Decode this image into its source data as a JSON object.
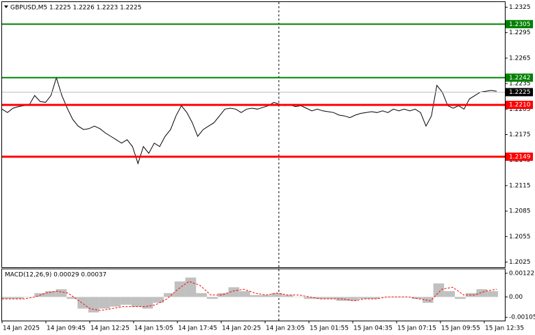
{
  "chart_data": [
    {
      "type": "line",
      "title": "GBPUSD,M5  1.2225 1.2226 1.2223 1.2225",
      "series": [
        {
          "color": "#000000",
          "values": [
            1.2205,
            1.2201,
            1.2206,
            1.2208,
            1.2209,
            1.221,
            1.2221,
            1.2214,
            1.2213,
            1.2221,
            1.2242,
            1.2221,
            1.2206,
            1.2193,
            1.2185,
            1.2181,
            1.2182,
            1.2185,
            1.2182,
            1.2177,
            1.2173,
            1.2169,
            1.2165,
            1.2169,
            1.2161,
            1.2141,
            1.2161,
            1.2153,
            1.2165,
            1.2161,
            1.2173,
            1.2181,
            1.2197,
            1.2209,
            1.2201,
            1.2189,
            1.2173,
            1.2181,
            1.2185,
            1.2189,
            1.2197,
            1.2205,
            1.2206,
            1.2205,
            1.2201,
            1.2205,
            1.2206,
            1.2205,
            1.2207,
            1.2209,
            1.2213,
            1.2211,
            1.2209,
            1.221,
            1.2208,
            1.2209,
            1.2206,
            1.2203,
            1.2205,
            1.2203,
            1.2202,
            1.2201,
            1.2198,
            1.2197,
            1.2195,
            1.2198,
            1.22,
            1.2201,
            1.2202,
            1.2201,
            1.2203,
            1.2201,
            1.2205,
            1.2203,
            1.2205,
            1.2203,
            1.2205,
            1.2201,
            1.2185,
            1.2197,
            1.2233,
            1.2225,
            1.2209,
            1.2206,
            1.2209,
            1.2205,
            1.2217,
            1.2221,
            1.2225,
            1.2226,
            1.2227,
            1.2226
          ]
        }
      ],
      "ylim": [
        1.2019,
        1.2331
      ],
      "yticks": [
        1.2325,
        1.2295,
        1.2265,
        1.2235,
        1.2205,
        1.2175,
        1.2145,
        1.2115,
        1.2085,
        1.2055,
        1.2025
      ],
      "levels": [
        {
          "value": 1.2305,
          "color": "#008000"
        },
        {
          "value": 1.2242,
          "color": "#008000"
        },
        {
          "value": 1.221,
          "label": "1.2210",
          "color": "#ff0000"
        },
        {
          "value": 1.2149,
          "color": "#ff0000"
        }
      ],
      "last_price": {
        "value": 1.2225,
        "color": "#000000"
      },
      "x_labels": [
        "14 Jan 2025",
        "14 Jan 09:45",
        "14 Jan 12:25",
        "14 Jan 15:05",
        "14 Jan 17:45",
        "14 Jan 20:25",
        "14 Jan 23:05",
        "15 Jan 01:55",
        "15 Jan 04:35",
        "15 Jan 07:15",
        "15 Jan 09:55",
        "15 Jan 12:35"
      ]
    },
    {
      "type": "bar",
      "title": "MACD(12,26,9) 0.00029 0.00037",
      "series": [
        {
          "color": "#c0c0c0",
          "values": [
            -0.0001,
            -0.0001,
            0.0,
            0.0002,
            0.0003,
            0.0004,
            -0.0001,
            -0.0006,
            -0.0008,
            -0.0006,
            -0.0005,
            -0.0004,
            -0.0005,
            -0.0006,
            -0.0003,
            0.0002,
            0.0008,
            0.001,
            0.0002,
            -0.0001,
            0.0002,
            0.0005,
            0.0003,
            0.0001,
            0.0001,
            0.0002,
            0.0001,
            0.0,
            -0.0001,
            -0.0001,
            -0.0001,
            -0.0002,
            -0.0002,
            -0.0001,
            -0.0001,
            0.0,
            0.0,
            0.0,
            -0.0001,
            -0.0003,
            0.0007,
            0.0003,
            -0.0001,
            0.0002,
            0.0004,
            0.0003
          ]
        },
        {
          "type": "line",
          "color": "#ff0000",
          "values": [
            -0.0001,
            -0.0001,
            -0.0001,
            0.0,
            0.0002,
            0.0003,
            0.0002,
            -0.0002,
            -0.0006,
            -0.0007,
            -0.0006,
            -0.0005,
            -0.0005,
            -0.0005,
            -0.0004,
            -0.0001,
            0.0004,
            0.0008,
            0.0006,
            0.0001,
            0.0001,
            0.0003,
            0.0004,
            0.0002,
            0.0001,
            0.0002,
            0.0001,
            0.0001,
            0.0,
            -0.0001,
            -0.0001,
            -0.0001,
            -0.0002,
            -0.0001,
            -0.0001,
            0.0,
            0.0,
            0.0,
            -0.0001,
            -0.0002,
            0.0004,
            0.0005,
            0.0001,
            0.0001,
            0.0003,
            0.0004
          ]
        }
      ],
      "ylim": [
        -0.00122,
        0.00143
      ],
      "yticks": [
        0.00122,
        {
          "value": 0,
          "label": "0.00"
        },
        -0.00105
      ]
    }
  ]
}
